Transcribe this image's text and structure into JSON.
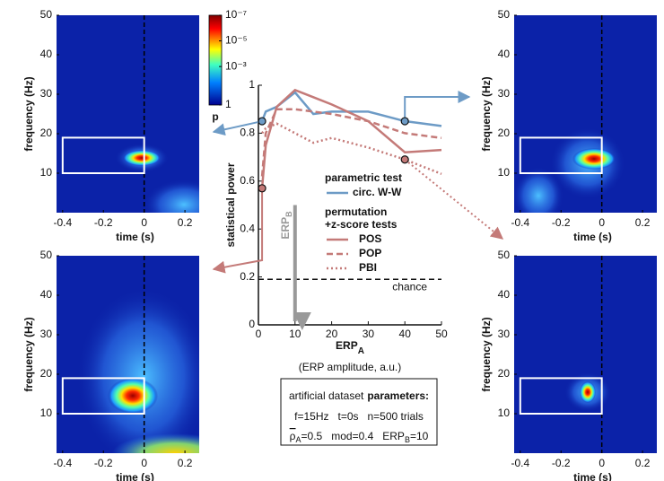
{
  "chart_data": [
    {
      "type": "line",
      "ylabel": "statistical power",
      "xlabel": "ERP",
      "xlabel_sub": "A",
      "xlabel_note": "(ERP amplitude, a.u.)",
      "x": [
        1,
        2,
        5,
        10,
        15,
        20,
        30,
        40,
        50
      ],
      "series": [
        {
          "name": "circ. W-W",
          "group": 0,
          "color": "#6d9bc6",
          "dash": "solid",
          "values": [
            0.85,
            0.89,
            0.91,
            0.97,
            0.88,
            0.89,
            0.89,
            0.85,
            0.83
          ]
        },
        {
          "name": "POS",
          "group": 1,
          "color": "#c47a78",
          "dash": "solid",
          "values": [
            0.57,
            0.75,
            0.91,
            0.98,
            0.95,
            0.92,
            0.85,
            0.72,
            0.73
          ]
        },
        {
          "name": "POP",
          "group": 1,
          "color": "#c47a78",
          "dash": "dashed",
          "values": [
            0.62,
            0.8,
            0.9,
            0.9,
            0.89,
            0.88,
            0.85,
            0.8,
            0.78
          ]
        },
        {
          "name": "PBI",
          "group": 1,
          "color": "#c47a78",
          "dash": "dotted",
          "values": [
            0.8,
            0.82,
            0.84,
            0.8,
            0.76,
            0.78,
            0.74,
            0.69,
            0.63
          ]
        }
      ],
      "legend_groups": [
        {
          "title": [
            "parametric test"
          ],
          "color": "#6d9bc6"
        },
        {
          "title": [
            "permutation",
            "+z-score tests"
          ],
          "color": "#c47a78"
        }
      ],
      "highlights": [
        {
          "series": 0,
          "index": 0
        },
        {
          "series": 1,
          "index": 0
        },
        {
          "series": 0,
          "index": 7
        },
        {
          "series": 3,
          "index": 7
        }
      ],
      "xlim": [
        0,
        50
      ],
      "xticks": [
        0,
        10,
        20,
        30,
        40,
        50
      ],
      "ylim": [
        0,
        1
      ],
      "yticks": [
        0,
        0.2,
        0.4,
        0.6,
        0.8,
        1
      ],
      "chance": 0.19,
      "chance_label": "chance",
      "erp_b": {
        "label": "ERP",
        "sub": "B",
        "x": 10,
        "from": 0.5,
        "to": 0
      }
    },
    {
      "type": "heatmap",
      "xlabel": "time (s)",
      "ylabel": "frequency (Hz)",
      "xlim": [
        -0.43,
        0.27
      ],
      "xticks": [
        -0.4,
        -0.2,
        0,
        0.2
      ],
      "ylim": [
        0,
        50
      ],
      "yticks": [
        10,
        20,
        30,
        40,
        50
      ],
      "window": {
        "time": [
          -0.4,
          0
        ],
        "frequency": [
          10,
          19
        ]
      },
      "event_time": 0
    },
    {
      "type": "heatmap",
      "xlabel": "time (s)",
      "ylabel": "frequency (Hz)",
      "xlim": [
        -0.43,
        0.27
      ],
      "xticks": [
        -0.4,
        -0.2,
        0,
        0.2
      ],
      "ylim": [
        0,
        50
      ],
      "yticks": [
        10,
        20,
        30,
        40,
        50
      ],
      "window": {
        "time": [
          -0.4,
          0
        ],
        "frequency": [
          10,
          19
        ]
      },
      "event_time": 0
    },
    {
      "type": "heatmap",
      "xlabel": "time (s)",
      "ylabel": "frequency (Hz)",
      "xlim": [
        -0.43,
        0.27
      ],
      "xticks": [
        -0.4,
        -0.2,
        0,
        0.2
      ],
      "ylim": [
        0,
        50
      ],
      "yticks": [
        10,
        20,
        30,
        40,
        50
      ],
      "window": {
        "time": [
          -0.4,
          0
        ],
        "frequency": [
          10,
          19
        ]
      },
      "event_time": 0
    },
    {
      "type": "heatmap",
      "xlabel": "time (s)",
      "ylabel": "frequency (Hz)",
      "xlim": [
        -0.43,
        0.27
      ],
      "xticks": [
        -0.4,
        -0.2,
        0,
        0.2
      ],
      "ylim": [
        0,
        50
      ],
      "yticks": [
        10,
        20,
        30,
        40,
        50
      ],
      "window": {
        "time": [
          -0.4,
          0
        ],
        "frequency": [
          10,
          19
        ]
      },
      "event_time": 0
    },
    {
      "type": "colorbar",
      "label": "p",
      "scale": "log",
      "ylim": [
        1,
        1e-07
      ],
      "yticks": [
        {
          "value": 1e-07,
          "label": "10⁻⁷"
        },
        {
          "value": 1e-05,
          "label": "10⁻⁵"
        },
        {
          "value": 0.001,
          "label": "10⁻³"
        },
        1
      ]
    }
  ],
  "parameters": {
    "title": "artificial dataset",
    "title_bold": "parameters:",
    "line1": [
      "f=15Hz",
      "t=0s",
      "n=500 trials"
    ],
    "line2": {
      "symbol": "ρ",
      "sub": "A",
      "rest": "=0.5",
      "mod": "mod=0.4",
      "erp": "ERP",
      "erp_sub": "B",
      "erp_rest": "=10"
    }
  }
}
